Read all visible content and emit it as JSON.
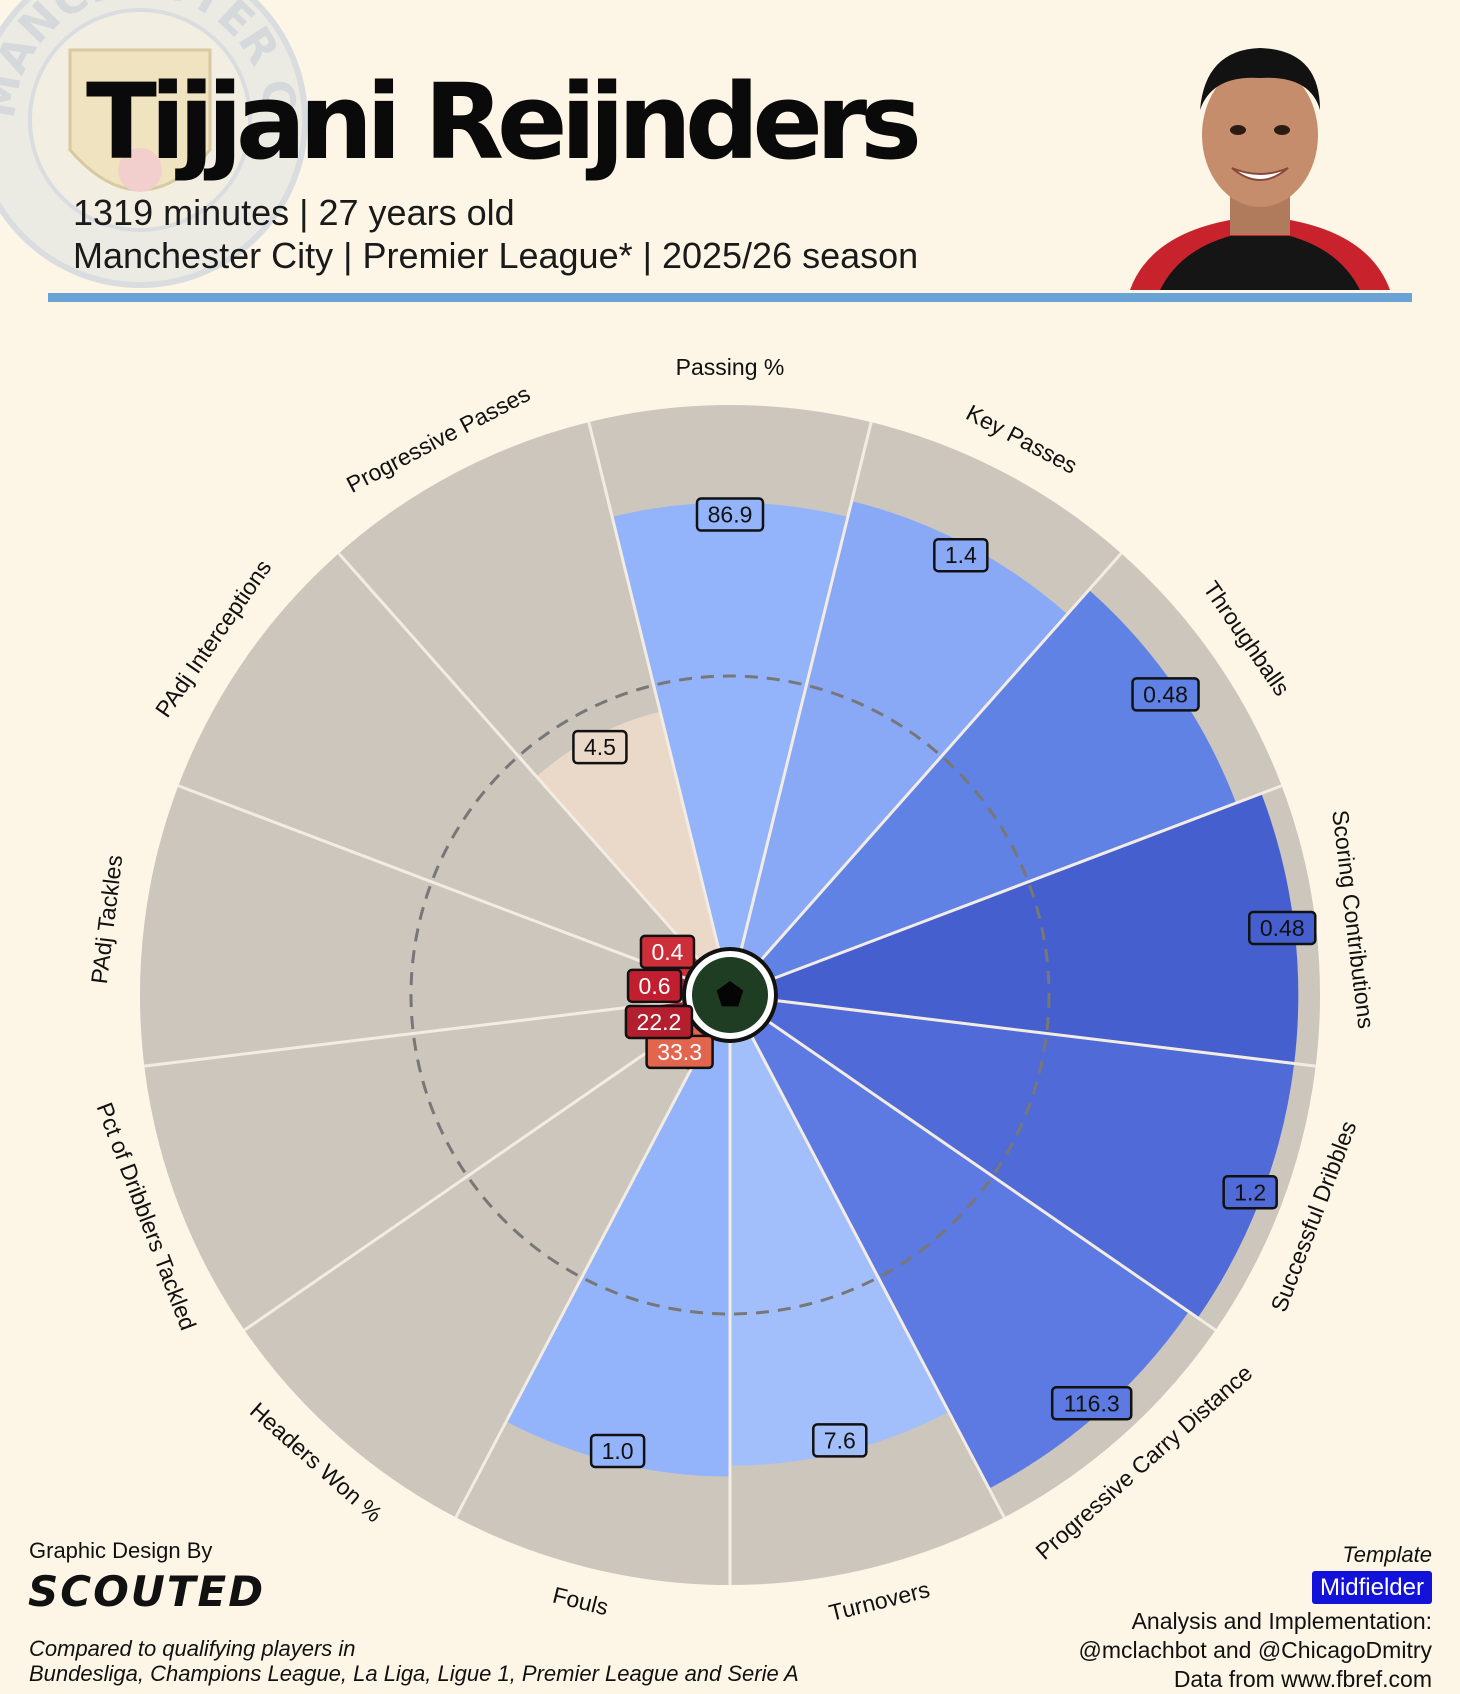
{
  "header": {
    "player_name": "Tijjani Reijnders",
    "subline1": "1319 minutes | 27 years old",
    "subline2": "Manchester City | Premier League* | 2025/26 season",
    "crest_text": "MANCHESTER CITY",
    "accent_color": "#6aa3d5"
  },
  "chart_data": {
    "type": "radar-pizza",
    "max_value": 100,
    "legend": "none",
    "median_ring": true,
    "metrics": [
      {
        "label": "Passing %",
        "value_label": "86.9",
        "percentile": 82,
        "group": "attack",
        "color": "#93b4fb"
      },
      {
        "label": "Key Passes",
        "value_label": "1.4",
        "percentile": 85,
        "group": "attack",
        "color": "#89a9f7"
      },
      {
        "label": "Throughballs",
        "value_label": "0.48",
        "percentile": 91,
        "group": "attack",
        "color": "#6182e5"
      },
      {
        "label": "Scoring Contributions",
        "value_label": "0.48",
        "percentile": 96,
        "group": "attack",
        "color": "#465fcf"
      },
      {
        "label": "Successful Dribbles",
        "value_label": "1.2",
        "percentile": 96,
        "group": "attack",
        "color": "#506ad8"
      },
      {
        "label": "Progressive Carry Distance",
        "value_label": "116.3",
        "percentile": 94,
        "group": "attack",
        "color": "#5c7ae1"
      },
      {
        "label": "Turnovers",
        "value_label": "7.6",
        "percentile": 78,
        "group": "attack",
        "color": "#a2bffc"
      },
      {
        "label": "Fouls",
        "value_label": "1.0",
        "percentile": 80,
        "group": "attack",
        "color": "#93b4fb"
      },
      {
        "label": "Headers Won %",
        "value_label": "33.3",
        "percentile": 7,
        "group": "defense",
        "color": "#e2654e"
      },
      {
        "label": "Pct of Dribblers Tackled",
        "value_label": "22.2",
        "percentile": 4,
        "group": "defense",
        "color": "#b41f30"
      },
      {
        "label": "PAdj Tackles",
        "value_label": "0.6",
        "percentile": 4,
        "group": "defense",
        "color": "#c11f30"
      },
      {
        "label": "PAdj Interceptions",
        "value_label": "0.4",
        "percentile": 5,
        "group": "defense",
        "color": "#cc2f3a"
      },
      {
        "label": "Progressive Passes",
        "value_label": "4.5",
        "percentile": 45,
        "group": "neutral",
        "color": "#ead8c9"
      }
    ]
  },
  "footer": {
    "design_credit": "Graphic Design By",
    "logo": "SCOUTED",
    "comparison_line1": "Compared to qualifying players in",
    "comparison_line2": "Bundesliga, Champions League, La Liga, Ligue 1, Premier League and Serie A",
    "template_label": "Template",
    "template_value": "Midfielder",
    "analysis_line1": "Analysis and Implementation:",
    "analysis_line2": "@mclachbot and @ChicagoDmitry",
    "data_source": "Data from www.fbref.com"
  }
}
